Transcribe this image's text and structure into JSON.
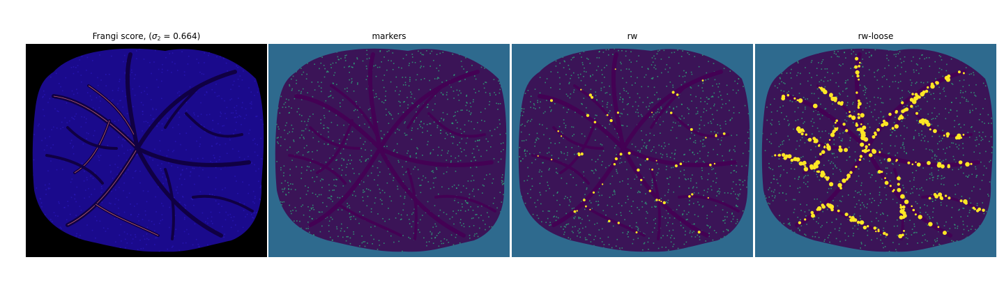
{
  "figure": {
    "panels": [
      {
        "id": "frangi",
        "title_text": "Frangi score, (",
        "title_math_sigma": "σ",
        "title_math_sub": "2",
        "title_math_rest": " = 0.664",
        "title_close": ")",
        "background": "#000000",
        "region_color": "#1a0a8c",
        "vessel_color": "#100043",
        "highlight_color": "#f07a70"
      },
      {
        "id": "markers",
        "title": "markers",
        "background": "#2e6a8e",
        "region_color": "#3b1457",
        "vessel_color": "#440154",
        "highlight_color": "#2fb47c"
      },
      {
        "id": "rw",
        "title": "rw",
        "background": "#2e6a8e",
        "region_color": "#3b1457",
        "vessel_color": "#440154",
        "highlight_color": "#2fb47c",
        "accent_color": "#fde725"
      },
      {
        "id": "rw-loose",
        "title": "rw-loose",
        "background": "#2e6a8e",
        "region_color": "#3b1457",
        "vessel_color": "#440154",
        "highlight_color": "#2fb47c",
        "accent_color": "#fde725"
      }
    ]
  }
}
